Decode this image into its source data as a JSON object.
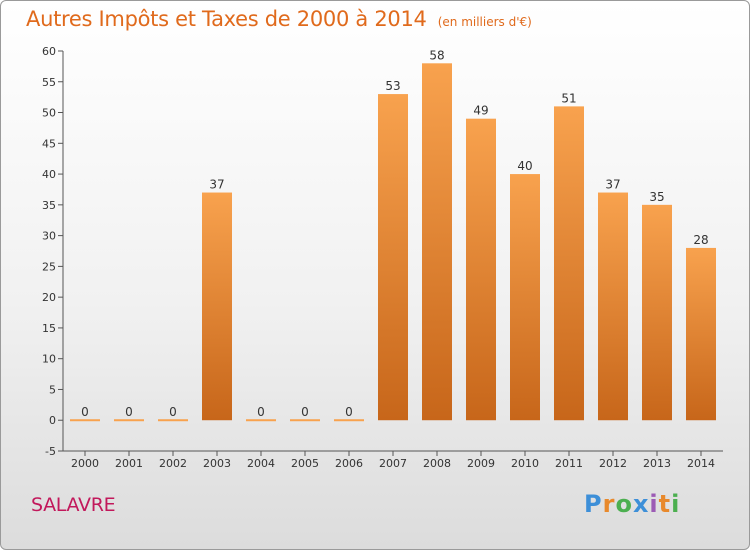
{
  "title": "Autres Impôts et Taxes de 2000 à 2014",
  "unit": "(en milliers d'€)",
  "location": "SALAVRE",
  "logo": {
    "letters": [
      "P",
      "r",
      "o",
      "x",
      "i",
      "t",
      "i"
    ],
    "colors": [
      "#3d8fd8",
      "#e8892c",
      "#4caf50",
      "#3d8fd8",
      "#9c5bb5",
      "#e8892c",
      "#4caf50"
    ]
  },
  "colors": {
    "bar_light": "#f8a24e",
    "bar_dark": "#c7661a",
    "title": "#e06a1c",
    "location": "#c2185b"
  },
  "chart_data": {
    "type": "bar",
    "title": "Autres Impôts et Taxes de 2000 à 2014",
    "categories": [
      "2000",
      "2001",
      "2002",
      "2003",
      "2004",
      "2005",
      "2006",
      "2007",
      "2008",
      "2009",
      "2010",
      "2011",
      "2012",
      "2013",
      "2014"
    ],
    "values": [
      0,
      0,
      0,
      37,
      0,
      0,
      0,
      53,
      58,
      49,
      40,
      51,
      37,
      35,
      28
    ],
    "ylim": [
      -5,
      60
    ],
    "yticks": [
      -5,
      0,
      5,
      10,
      15,
      20,
      25,
      30,
      35,
      40,
      45,
      50,
      55,
      60
    ],
    "grid": false,
    "data_labels": true
  }
}
